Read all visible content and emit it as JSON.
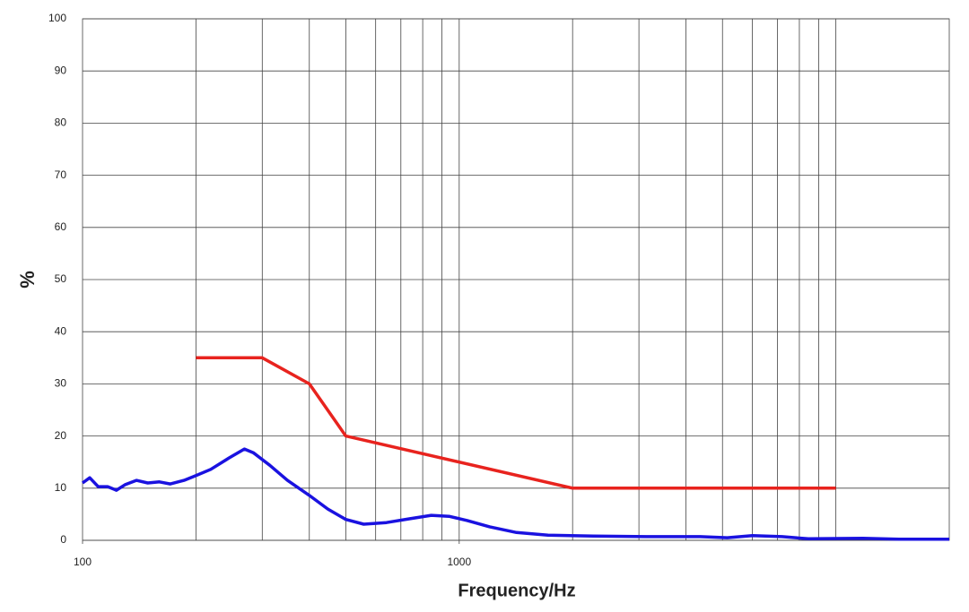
{
  "chart_data": {
    "type": "line",
    "x_label": "Frequency/Hz",
    "y_label": "%",
    "x_scale": "log",
    "xlim": [
      100,
      20000
    ],
    "xticks": [
      100,
      1000
    ],
    "x_grid": [
      200,
      300,
      400,
      500,
      600,
      700,
      800,
      900,
      1000,
      2000,
      3000,
      4000,
      5000,
      6000,
      7000,
      8000,
      9000,
      10000
    ],
    "ylim": [
      0,
      100
    ],
    "yticks": [
      0,
      10,
      20,
      30,
      40,
      50,
      60,
      70,
      80,
      90,
      100
    ],
    "grid": true,
    "series": [
      {
        "color": "#e8231e",
        "x": [
          200,
          300,
          400,
          500,
          2000,
          10000
        ],
        "values": [
          35,
          35,
          30,
          20,
          10,
          10
        ]
      },
      {
        "color": "#1a12e0",
        "x": [
          100,
          104.5,
          110,
          116.6,
          123,
          130,
          139,
          149,
          160,
          171,
          186,
          200,
          219,
          245,
          269,
          284,
          314,
          350,
          400,
          448,
          500,
          558,
          641,
          734,
          843,
          940,
          1050,
          1204,
          1420,
          1720,
          2270,
          3140,
          4360,
          5150,
          6000,
          7200,
          8450,
          11800,
          14700,
          20000
        ],
        "values": [
          11,
          12,
          10.3,
          10.3,
          9.6,
          10.7,
          11.5,
          11,
          11.2,
          10.8,
          11.5,
          12.4,
          13.6,
          15.8,
          17.5,
          16.8,
          14.4,
          11.5,
          8.6,
          6,
          4,
          3.1,
          3.4,
          4.1,
          4.8,
          4.6,
          3.8,
          2.6,
          1.5,
          1,
          0.8,
          0.7,
          0.7,
          0.5,
          0.9,
          0.7,
          0.3,
          0.4,
          0.2,
          0.2
        ]
      }
    ]
  }
}
